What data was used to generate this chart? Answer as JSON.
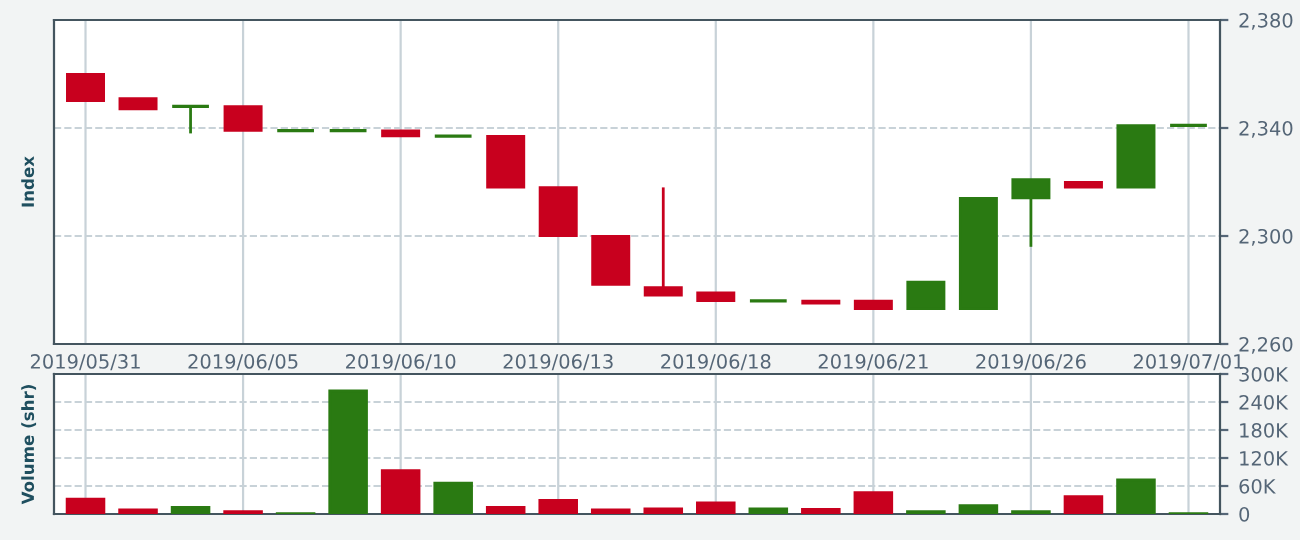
{
  "chart_data": [
    {
      "type": "candlestick",
      "ylabel": "Index",
      "categories": [
        "2019/05/31",
        null,
        null,
        "2019/06/05",
        null,
        null,
        "2019/06/10",
        null,
        null,
        "2019/06/13",
        null,
        null,
        "2019/06/18",
        null,
        null,
        "2019/06/21",
        null,
        null,
        "2019/06/26",
        null,
        null,
        "2019/07/01"
      ],
      "ohlc": [
        [
          2360,
          2360,
          2350,
          2350
        ],
        [
          2351,
          2351,
          2347,
          2347
        ],
        [
          2348,
          2348,
          2338,
          2348
        ],
        [
          2348,
          2348,
          2339,
          2339
        ],
        [
          2339,
          2339,
          2339,
          2339
        ],
        [
          2339,
          2339,
          2339,
          2339
        ],
        [
          2339,
          2339,
          2337,
          2337
        ],
        [
          2337,
          2337,
          2337,
          2337
        ],
        [
          2337,
          2337,
          2318,
          2318
        ],
        [
          2318,
          2318,
          2300,
          2300
        ],
        [
          2300,
          2300,
          2282,
          2282
        ],
        [
          2281,
          2318,
          2278,
          2278
        ],
        [
          2279,
          2279,
          2276,
          2276
        ],
        [
          2276,
          2276,
          2276,
          2276
        ],
        [
          2276,
          2276,
          2275,
          2275
        ],
        [
          2276,
          2276,
          2273,
          2273
        ],
        [
          2273,
          2283,
          2273,
          2283
        ],
        [
          2273,
          2314,
          2273,
          2314
        ],
        [
          2314,
          2321,
          2296,
          2321
        ],
        [
          2320,
          2320,
          2318,
          2318
        ],
        [
          2318,
          2341,
          2318,
          2341
        ],
        [
          2341,
          2341,
          2341,
          2341
        ]
      ],
      "colors": [
        "#c8001e",
        "#c8001e",
        "#2a7a12",
        "#c8001e",
        "#2a7a12",
        "#2a7a12",
        "#c8001e",
        "#2a7a12",
        "#c8001e",
        "#c8001e",
        "#c8001e",
        "#c8001e",
        "#c8001e",
        "#2a7a12",
        "#c8001e",
        "#c8001e",
        "#2a7a12",
        "#2a7a12",
        "#2a7a12",
        "#c8001e",
        "#2a7a12",
        "#2a7a12"
      ],
      "ylim": [
        2260,
        2380
      ],
      "yticks": [
        {
          "value": 2260,
          "label": "2,260"
        },
        {
          "value": 2300,
          "label": "2,300"
        },
        {
          "value": 2340,
          "label": "2,340"
        },
        {
          "value": 2380,
          "label": "2,380"
        }
      ],
      "grid": true
    },
    {
      "type": "bar",
      "ylabel": "Volume (shr)",
      "tick_labels": "y",
      "categories": [
        "2019/05/31",
        null,
        null,
        "2019/06/05",
        null,
        null,
        "2019/06/10",
        null,
        null,
        "2019/06/13",
        null,
        null,
        "2019/06/18",
        null,
        null,
        "2019/06/21",
        null,
        null,
        "2019/06/26",
        null,
        null,
        "2019/07/01"
      ],
      "values": [
        32000,
        9000,
        14000,
        5000,
        1000,
        264000,
        93000,
        66000,
        14000,
        29000,
        9000,
        11000,
        24000,
        11000,
        10000,
        46000,
        5000,
        18000,
        5000,
        37000,
        73000,
        1000
      ],
      "colors": [
        "#c8001e",
        "#c8001e",
        "#2a7a12",
        "#c8001e",
        "#2a7a12",
        "#2a7a12",
        "#c8001e",
        "#2a7a12",
        "#c8001e",
        "#c8001e",
        "#c8001e",
        "#c8001e",
        "#c8001e",
        "#2a7a12",
        "#c8001e",
        "#c8001e",
        "#2a7a12",
        "#2a7a12",
        "#2a7a12",
        "#c8001e",
        "#2a7a12",
        "#2a7a12"
      ],
      "ylim": [
        0,
        300000
      ],
      "yticks": [
        0,
        {
          "value": 60000,
          "label": "60K"
        },
        {
          "value": 120000,
          "label": "120K"
        },
        {
          "value": 180000,
          "label": "180K"
        },
        {
          "value": 240000,
          "label": "240K"
        },
        {
          "value": 300000,
          "label": "300K"
        }
      ],
      "grid": true
    }
  ]
}
